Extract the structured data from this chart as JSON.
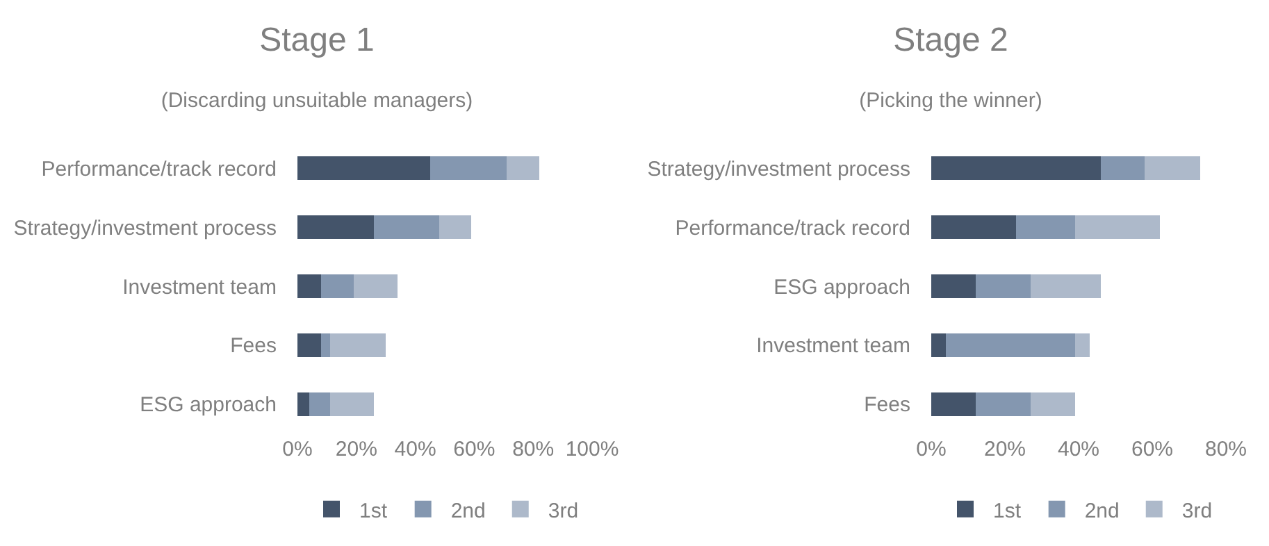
{
  "chart_data": [
    {
      "type": "bar",
      "orientation": "horizontal",
      "stacked": true,
      "title": "Stage 1",
      "subtitle": "(Discarding unsuitable managers)",
      "categories": [
        "Performance/track record",
        "Strategy/investment process",
        "Investment team",
        "Fees",
        "ESG approach"
      ],
      "series": [
        {
          "name": "1st",
          "color": "#44546a",
          "values": [
            45,
            26,
            8,
            8,
            4
          ]
        },
        {
          "name": "2nd",
          "color": "#8497b0",
          "values": [
            26,
            22,
            11,
            3,
            7
          ]
        },
        {
          "name": "3rd",
          "color": "#adb9ca",
          "values": [
            11,
            11,
            15,
            19,
            15
          ]
        }
      ],
      "xlim": [
        0,
        100
      ],
      "xticks": [
        {
          "value": 0,
          "label": "0%"
        },
        {
          "value": 20,
          "label": "20%"
        },
        {
          "value": 40,
          "label": "40%"
        },
        {
          "value": 60,
          "label": "60%"
        },
        {
          "value": 80,
          "label": "80%"
        },
        {
          "value": 100,
          "label": "100%"
        }
      ],
      "grid": false,
      "legend": "bottom"
    },
    {
      "type": "bar",
      "orientation": "horizontal",
      "stacked": true,
      "title": "Stage 2",
      "subtitle": "(Picking the winner)",
      "categories": [
        "Strategy/investment process",
        "Performance/track record",
        "ESG approach",
        "Investment team",
        "Fees"
      ],
      "series": [
        {
          "name": "1st",
          "color": "#44546a",
          "values": [
            46,
            23,
            12,
            4,
            12
          ]
        },
        {
          "name": "2nd",
          "color": "#8497b0",
          "values": [
            12,
            16,
            15,
            35,
            15
          ]
        },
        {
          "name": "3rd",
          "color": "#adb9ca",
          "values": [
            15,
            23,
            19,
            4,
            12
          ]
        }
      ],
      "xlim": [
        0,
        80
      ],
      "xticks": [
        {
          "value": 0,
          "label": "0%"
        },
        {
          "value": 20,
          "label": "20%"
        },
        {
          "value": 40,
          "label": "40%"
        },
        {
          "value": 60,
          "label": "60%"
        },
        {
          "value": 80,
          "label": "80%"
        }
      ],
      "grid": false,
      "legend": "bottom"
    }
  ]
}
